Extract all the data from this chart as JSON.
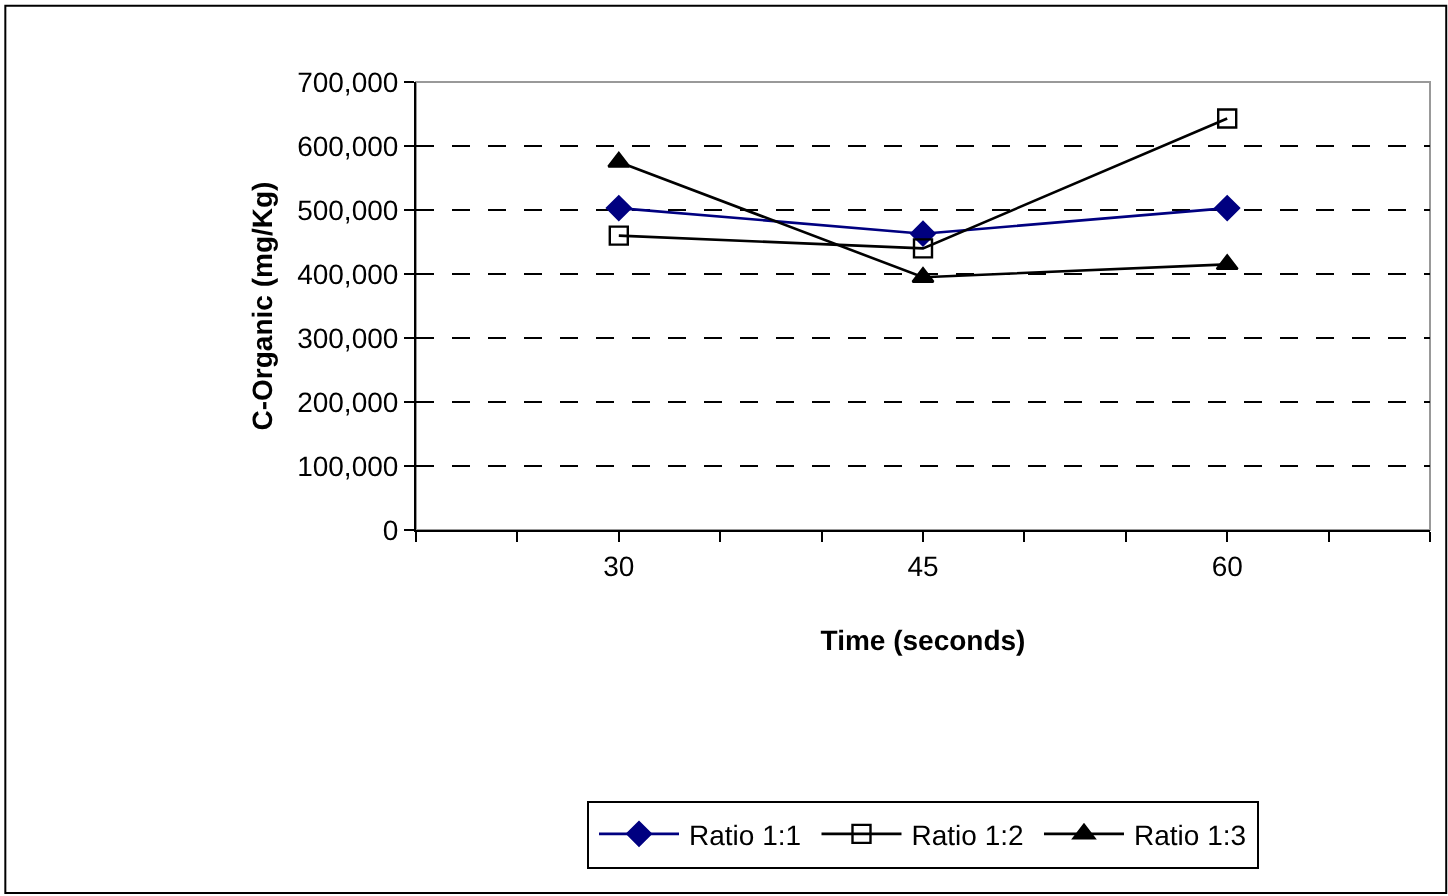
{
  "chart_data": {
    "type": "line",
    "xlabel": "Time (seconds)",
    "ylabel": "C-Organic (mg/Kg)",
    "x": [
      30,
      45,
      60
    ],
    "series": [
      {
        "name": "Ratio 1:1",
        "color": "#000080",
        "marker": "diamond",
        "values": [
          503000,
          463000,
          503000
        ]
      },
      {
        "name": "Ratio 1:2",
        "color": "#000000",
        "marker": "square",
        "values": [
          460000,
          440000,
          643000
        ]
      },
      {
        "name": "Ratio 1:3",
        "color": "#000000",
        "marker": "triangle",
        "values": [
          575000,
          395000,
          415000
        ]
      }
    ],
    "xlim": [
      20,
      70
    ],
    "xticks": [
      {
        "value": 20,
        "label": null
      },
      {
        "value": 25,
        "label": null
      },
      30,
      {
        "value": 35,
        "label": null
      },
      {
        "value": 40,
        "label": null
      },
      45,
      {
        "value": 50,
        "label": null
      },
      {
        "value": 55,
        "label": null
      },
      60,
      {
        "value": 65,
        "label": null
      },
      {
        "value": 70,
        "label": null
      }
    ],
    "ylim": [
      0,
      700000
    ],
    "yticks": [
      {
        "value": 0,
        "label": "0"
      },
      {
        "value": 100000,
        "label": "100,000"
      },
      {
        "value": 200000,
        "label": "200,000"
      },
      {
        "value": 300000,
        "label": "300,000"
      },
      {
        "value": 400000,
        "label": "400,000"
      },
      {
        "value": 500000,
        "label": "500,000"
      },
      {
        "value": 600000,
        "label": "600,000"
      },
      {
        "value": 700000,
        "label": "700,000"
      }
    ],
    "grid": "y",
    "legend": "bottom",
    "line_style": "solid"
  }
}
